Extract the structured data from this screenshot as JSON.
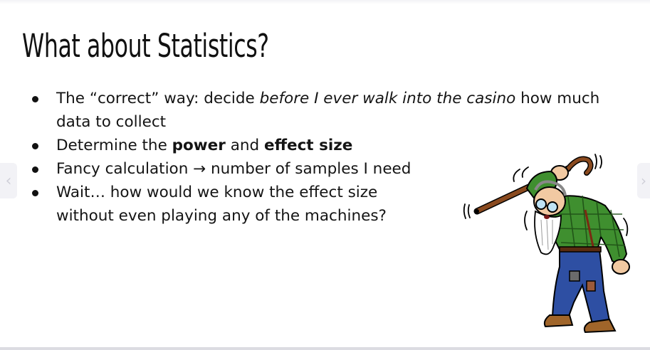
{
  "slide": {
    "title": "What about Statistics?",
    "bullets": [
      {
        "parts": [
          {
            "text": "The “correct” way: decide ",
            "style": "normal"
          },
          {
            "text": "before I ever walk into the casino",
            "style": "italic"
          },
          {
            "text": " how much data to collect",
            "style": "normal"
          }
        ]
      },
      {
        "parts": [
          {
            "text": "Determine the ",
            "style": "normal"
          },
          {
            "text": "power",
            "style": "bold"
          },
          {
            "text": " and ",
            "style": "normal"
          },
          {
            "text": "effect size",
            "style": "bold"
          }
        ]
      },
      {
        "parts": [
          {
            "text": "Fancy calculation → number of samples I need",
            "style": "normal"
          }
        ]
      },
      {
        "parts": [
          {
            "text": "Wait… how would we know the effect size",
            "style": "normal"
          },
          {
            "text": "without even playing any of the machines?",
            "style": "newline"
          }
        ]
      }
    ]
  },
  "navigation": {
    "prev_icon": "chevron-left-icon",
    "next_icon": "chevron-right-icon",
    "prev_glyph": "‹",
    "next_glyph": "›"
  },
  "illustration": {
    "icon": "angry-old-man-with-cane-illustration"
  },
  "colors": {
    "title": "#111111",
    "text": "#141414",
    "shirt": "#3f8f2f",
    "pants": "#2e4fa3",
    "cane": "#8a4a1f"
  }
}
